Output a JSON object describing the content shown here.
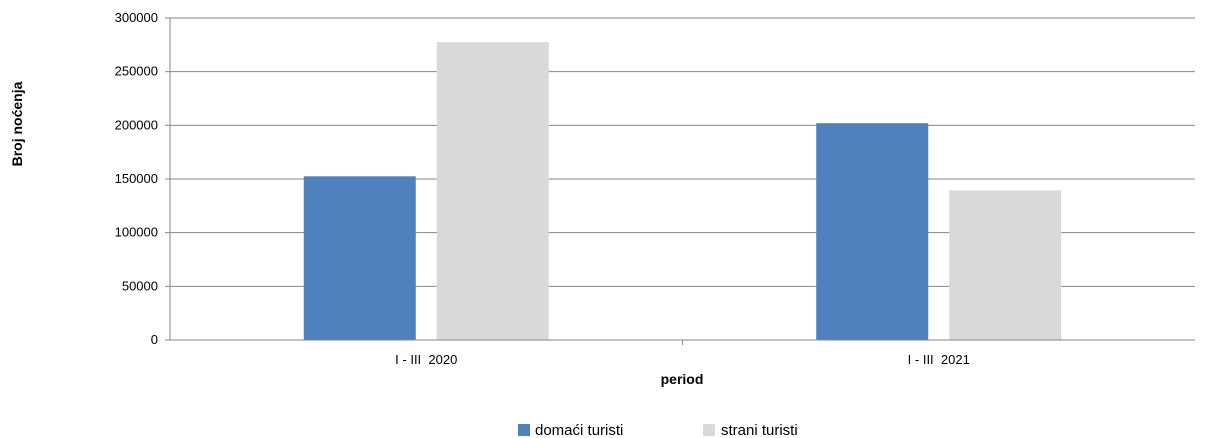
{
  "chart_data": {
    "type": "bar",
    "title": "",
    "xlabel": "period",
    "ylabel": "Broj noćenja",
    "categories": [
      "I - III  2020",
      "I - III  2021"
    ],
    "series": [
      {
        "name": "domaći turisti",
        "color": "#4f81bd",
        "values": [
          152500,
          202000
        ]
      },
      {
        "name": "strani turisti",
        "color": "#d9d9d9",
        "values": [
          277500,
          139500
        ]
      }
    ],
    "ylim": [
      0,
      300000
    ],
    "yticks": [
      0,
      50000,
      100000,
      150000,
      200000,
      250000,
      300000
    ],
    "grid": true,
    "legend_position": "bottom"
  }
}
